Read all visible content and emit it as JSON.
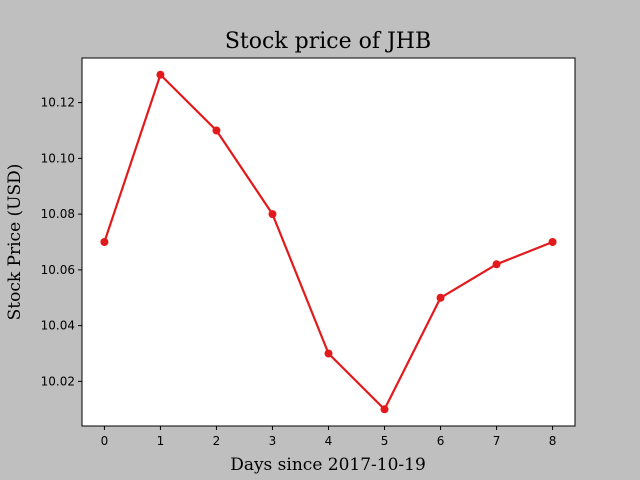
{
  "chart_data": {
    "type": "line",
    "title": "Stock price of JHB",
    "xlabel": "Days since 2017-10-19",
    "ylabel": "Stock Price (USD)",
    "x": [
      0,
      1,
      2,
      3,
      4,
      5,
      6,
      7,
      8
    ],
    "series": [
      {
        "values": [
          10.07,
          10.13,
          10.11,
          10.08,
          10.03,
          10.01,
          10.05,
          10.062,
          10.07
        ],
        "color": "#e31a1c"
      }
    ],
    "xticks": [
      "0",
      "1",
      "2",
      "3",
      "4",
      "5",
      "6",
      "7",
      "8"
    ],
    "yticks": [
      "10.02",
      "10.04",
      "10.06",
      "10.08",
      "10.10",
      "10.12"
    ],
    "xlim": [
      -0.4,
      8.4
    ],
    "ylim": [
      10.004,
      10.136
    ],
    "grid": false,
    "marker": "circle",
    "background": "#bfbfbf",
    "plot_background": "#ffffff"
  }
}
